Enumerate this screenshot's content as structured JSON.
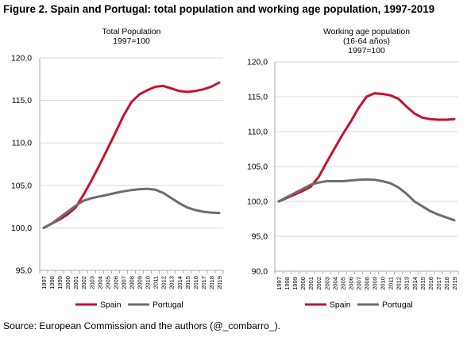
{
  "figure": {
    "title": "Figure 2. Spain and Portugal: total population and working age population, 1997-2019",
    "source": "Source: European Commission and the authors (@_combarro_)."
  },
  "colors": {
    "spain": "#c8102e",
    "portugal": "#6d6d6d",
    "axis": "#a6a6a6",
    "grid": "#d9d9d9"
  },
  "chart_data": [
    {
      "type": "line",
      "title_lines": [
        "Total Population",
        "1997=100"
      ],
      "xlabel": "",
      "ylabel": "",
      "ylim": [
        95,
        120
      ],
      "yticks": [
        "95,0",
        "100,0",
        "105,0",
        "110,0",
        "115,0",
        "120,0"
      ],
      "grid": true,
      "legend_position": "bottom",
      "x": [
        "1997",
        "1998",
        "1999",
        "2000",
        "2001",
        "2002",
        "2003",
        "2004",
        "2005",
        "2006",
        "2007",
        "2008",
        "2009",
        "2010",
        "2011",
        "2012",
        "2013",
        "2014",
        "2015",
        "2016",
        "2017",
        "2018",
        "2019"
      ],
      "series": [
        {
          "name": "Spain",
          "color": "#c8102e",
          "values": [
            100.0,
            100.5,
            101.0,
            101.6,
            102.4,
            103.9,
            105.6,
            107.4,
            109.3,
            111.2,
            113.2,
            114.8,
            115.7,
            116.2,
            116.6,
            116.7,
            116.4,
            116.1,
            116.0,
            116.1,
            116.3,
            116.6,
            117.1
          ]
        },
        {
          "name": "Portugal",
          "color": "#6d6d6d",
          "values": [
            100.0,
            100.5,
            101.2,
            101.9,
            102.6,
            103.2,
            103.5,
            103.7,
            103.9,
            104.1,
            104.3,
            104.45,
            104.55,
            104.6,
            104.5,
            104.1,
            103.5,
            102.9,
            102.4,
            102.1,
            101.9,
            101.8,
            101.75
          ]
        }
      ]
    },
    {
      "type": "line",
      "title_lines": [
        "Working age population",
        "(16-64 años)",
        "1997=100"
      ],
      "xlabel": "",
      "ylabel": "",
      "ylim": [
        90,
        120
      ],
      "yticks": [
        "90,0",
        "95,0",
        "100,0",
        "105,0",
        "110,0",
        "115,0",
        "120,0"
      ],
      "grid": true,
      "legend_position": "bottom",
      "x": [
        "1997",
        "1998",
        "1999",
        "2000",
        "2001",
        "2002",
        "2003",
        "2004",
        "2005",
        "2006",
        "2007",
        "2008",
        "2009",
        "2010",
        "2011",
        "2012",
        "2013",
        "2014",
        "2015",
        "2016",
        "2017",
        "2018",
        "2019"
      ],
      "series": [
        {
          "name": "Spain",
          "color": "#c8102e",
          "values": [
            100.0,
            100.5,
            101.0,
            101.5,
            102.1,
            103.5,
            105.6,
            107.6,
            109.6,
            111.4,
            113.4,
            115.0,
            115.5,
            115.4,
            115.2,
            114.7,
            113.6,
            112.6,
            112.0,
            111.8,
            111.7,
            111.7,
            111.8
          ]
        },
        {
          "name": "Portugal",
          "color": "#6d6d6d",
          "values": [
            100.0,
            100.6,
            101.2,
            101.8,
            102.4,
            102.7,
            102.9,
            102.9,
            102.9,
            103.0,
            103.1,
            103.15,
            103.1,
            102.9,
            102.6,
            102.0,
            101.1,
            100.0,
            99.3,
            98.6,
            98.1,
            97.7,
            97.3
          ]
        }
      ]
    }
  ]
}
